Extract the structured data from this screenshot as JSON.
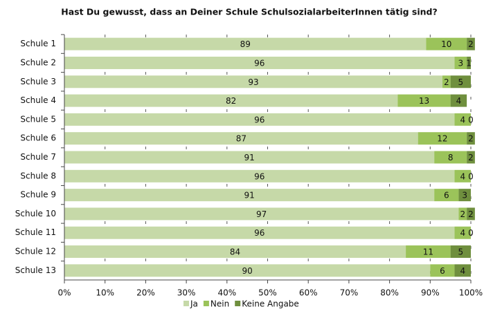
{
  "chart_data": {
    "type": "stacked-barh",
    "title": "Hast Du gewusst, dass an Deiner Schule SchulsozialarbeiterInnen tätig sind?",
    "categories": [
      "Schule 1",
      "Schule 2",
      "Schule 3",
      "Schule 4",
      "Schule 5",
      "Schule 6",
      "Schule 7",
      "Schule 8",
      "Schule 9",
      "Schule 10",
      "Schule 11",
      "Schule 12",
      "Schule 13"
    ],
    "series": [
      {
        "name": "Ja",
        "color": "#c6d9a8",
        "values": [
          89,
          96,
          93,
          82,
          96,
          87,
          91,
          96,
          91,
          97,
          96,
          84,
          90
        ]
      },
      {
        "name": "Nein",
        "color": "#9bc35a",
        "values": [
          10,
          3,
          2,
          13,
          4,
          12,
          8,
          4,
          6,
          2,
          4,
          11,
          6
        ]
      },
      {
        "name": "Keine Angabe",
        "color": "#6f8f3e",
        "values": [
          2,
          1,
          5,
          4,
          0,
          2,
          2,
          0,
          3,
          2,
          0,
          5,
          4
        ]
      }
    ],
    "xlim": [
      0,
      100
    ],
    "xticks": [
      {
        "value": 0,
        "label": "0%"
      },
      {
        "value": 10,
        "label": "10%"
      },
      {
        "value": 20,
        "label": "20%"
      },
      {
        "value": 30,
        "label": "30%"
      },
      {
        "value": 40,
        "label": "40%"
      },
      {
        "value": 50,
        "label": "50%"
      },
      {
        "value": 60,
        "label": "60%"
      },
      {
        "value": 70,
        "label": "70%"
      },
      {
        "value": 80,
        "label": "80%"
      },
      {
        "value": 90,
        "label": "90%"
      },
      {
        "value": 100,
        "label": "100%"
      }
    ],
    "grid": true,
    "legend": "bottom"
  }
}
